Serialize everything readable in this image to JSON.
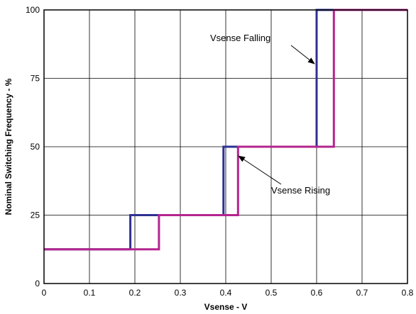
{
  "chart_data": {
    "type": "line",
    "title": "",
    "xlabel": "Vsense - V",
    "ylabel": "Nominal Switching Frequency - %",
    "xlim": [
      0,
      0.8
    ],
    "ylim": [
      0,
      100
    ],
    "xticks": [
      "0",
      "0.1",
      "0.2",
      "0.3",
      "0.4",
      "0.5",
      "0.6",
      "0.7",
      "0.8"
    ],
    "yticks": [
      "0",
      "25",
      "50",
      "75",
      "100"
    ],
    "grid": true,
    "series": [
      {
        "name": "Vsense Falling",
        "color": "#2e3192",
        "x": [
          0,
          0.19,
          0.19,
          0.395,
          0.395,
          0.6,
          0.6,
          0.8
        ],
        "y": [
          12.5,
          12.5,
          25,
          25,
          50,
          50,
          100,
          100
        ]
      },
      {
        "name": "Vsense Rising",
        "color": "#b5248e",
        "x": [
          0,
          0.253,
          0.253,
          0.427,
          0.427,
          0.638,
          0.638,
          0.8
        ],
        "y": [
          12.5,
          12.5,
          25,
          25,
          50,
          50,
          100,
          100
        ]
      }
    ],
    "annotations": [
      {
        "text": "Vsense Falling",
        "series": 0
      },
      {
        "text": "Vsense Rising",
        "series": 1
      }
    ]
  }
}
